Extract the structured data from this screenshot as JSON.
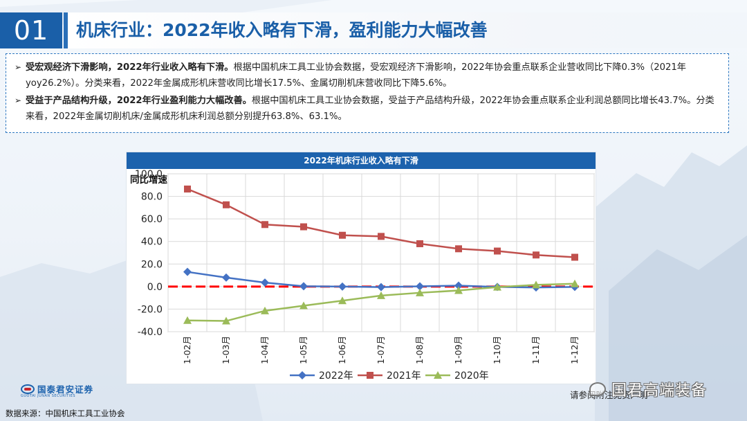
{
  "title": {
    "number": "01",
    "text": "机床行业：2022年收入略有下滑，盈利能力大幅改善"
  },
  "bullets": [
    {
      "marker": "➢",
      "bold": "受宏观经济下滑影响，2022年行业收入略有下滑。",
      "text": "根据中国机床工具工业协会数据，受宏观经济下滑影响，2022年协会重点联系企业营收同比下降0.3%（2021年yoy26.2%）。分类来看，2022年金属成形机床营收同比增长17.5%、金属切削机床营收同比下降5.6%。"
    },
    {
      "marker": "➢",
      "bold": "受益于产品结构升级，2022年行业盈利能力大幅改善。",
      "text": "根据中国机床工具工业协会数据，受益于产品结构升级，2022年协会重点联系企业利润总额同比增长43.7%。分类来看，2022年金属切削机床/金属成形机床利润总额分别提升63.8%、63.1%。"
    }
  ],
  "chart_data": {
    "type": "line",
    "title": "2022年机床行业收入略有下滑",
    "ylabel": "同比增速%",
    "ylim": [
      -40,
      100
    ],
    "yticks": [
      "100.0",
      "80.0",
      "60.0",
      "40.0",
      "20.0",
      "0.0",
      "-20.0",
      "-40.0"
    ],
    "categories": [
      "1-02月",
      "1-03月",
      "1-04月",
      "1-05月",
      "1-06月",
      "1-07月",
      "1-08月",
      "1-09月",
      "1-10月",
      "1-11月",
      "1-12月"
    ],
    "series": [
      {
        "name": "2022年",
        "color": "#4472c4",
        "marker": "diamond",
        "values": [
          13.0,
          8.0,
          3.5,
          0.3,
          0.0,
          -0.5,
          0.2,
          0.8,
          -0.3,
          -0.8,
          -0.3
        ]
      },
      {
        "name": "2021年",
        "color": "#c0504d",
        "marker": "square",
        "values": [
          86.5,
          72.5,
          55.0,
          53.0,
          45.5,
          44.5,
          38.0,
          33.5,
          31.5,
          28.0,
          26.0
        ]
      },
      {
        "name": "2020年",
        "color": "#9bbb59",
        "marker": "triangle",
        "values": [
          -30.0,
          -30.5,
          -21.5,
          -17.0,
          -12.5,
          -8.0,
          -5.5,
          -3.5,
          -0.5,
          1.5,
          2.5
        ]
      }
    ],
    "zero_line_color": "#ff0000"
  },
  "footer": {
    "logo_cn": "国泰君安证券",
    "logo_en": "GUOTAI JUNAN SECURITIES",
    "source": "数据来源：中国机床工具工业协会",
    "disclaimer": "请参阅附注免责声明",
    "watermark": "国君高端装备"
  }
}
